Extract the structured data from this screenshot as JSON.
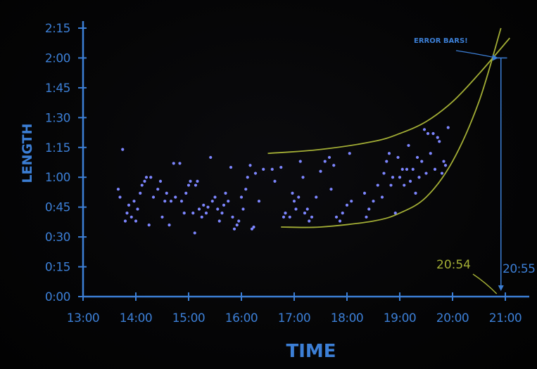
{
  "chart_data": {
    "type": "scatter",
    "title": "",
    "xlabel": "TIME",
    "ylabel": "LENGTH",
    "x_ticks": [
      "13:00",
      "14:00",
      "15:00",
      "16:00",
      "17:00",
      "18:00",
      "19:00",
      "20:00",
      "21:00"
    ],
    "y_ticks": [
      "0:00",
      "0:15",
      "0:30",
      "0:45",
      "1:00",
      "1:15",
      "1:30",
      "1:45",
      "2:00",
      "2:15"
    ],
    "xlim": [
      "13:00",
      "21:20"
    ],
    "ylim": [
      "0:00",
      "2:15"
    ],
    "grid": false,
    "legend": "none",
    "colors": {
      "axis": "#3c7fd6",
      "points": "#7d86ff",
      "fit": "#a3ae35",
      "background": "#050505"
    },
    "points": [
      {
        "x": "13:40",
        "y": "0:54"
      },
      {
        "x": "13:42",
        "y": "0:50"
      },
      {
        "x": "13:45",
        "y": "1:14"
      },
      {
        "x": "13:48",
        "y": "0:38"
      },
      {
        "x": "13:50",
        "y": "0:42"
      },
      {
        "x": "13:52",
        "y": "0:46"
      },
      {
        "x": "13:55",
        "y": "0:40"
      },
      {
        "x": "13:58",
        "y": "0:48"
      },
      {
        "x": "14:00",
        "y": "0:38"
      },
      {
        "x": "14:02",
        "y": "0:44"
      },
      {
        "x": "14:05",
        "y": "0:52"
      },
      {
        "x": "14:07",
        "y": "0:56"
      },
      {
        "x": "14:10",
        "y": "0:58"
      },
      {
        "x": "14:12",
        "y": "1:00"
      },
      {
        "x": "14:15",
        "y": "0:36"
      },
      {
        "x": "14:17",
        "y": "1:00"
      },
      {
        "x": "14:20",
        "y": "0:50"
      },
      {
        "x": "14:25",
        "y": "0:54"
      },
      {
        "x": "14:28",
        "y": "0:58"
      },
      {
        "x": "14:30",
        "y": "0:40"
      },
      {
        "x": "14:33",
        "y": "0:48"
      },
      {
        "x": "14:35",
        "y": "0:52"
      },
      {
        "x": "14:38",
        "y": "0:36"
      },
      {
        "x": "14:40",
        "y": "0:48"
      },
      {
        "x": "14:43",
        "y": "1:07"
      },
      {
        "x": "14:45",
        "y": "0:50"
      },
      {
        "x": "14:50",
        "y": "1:07"
      },
      {
        "x": "14:52",
        "y": "0:48"
      },
      {
        "x": "14:55",
        "y": "0:42"
      },
      {
        "x": "14:57",
        "y": "0:52"
      },
      {
        "x": "15:00",
        "y": "0:56"
      },
      {
        "x": "15:02",
        "y": "0:58"
      },
      {
        "x": "15:05",
        "y": "0:42"
      },
      {
        "x": "15:07",
        "y": "0:32"
      },
      {
        "x": "15:08",
        "y": "0:56"
      },
      {
        "x": "15:10",
        "y": "0:58"
      },
      {
        "x": "15:12",
        "y": "0:44"
      },
      {
        "x": "15:15",
        "y": "0:40"
      },
      {
        "x": "15:17",
        "y": "0:46"
      },
      {
        "x": "15:20",
        "y": "0:42"
      },
      {
        "x": "15:22",
        "y": "0:45"
      },
      {
        "x": "15:25",
        "y": "1:10"
      },
      {
        "x": "15:27",
        "y": "0:48"
      },
      {
        "x": "15:30",
        "y": "0:50"
      },
      {
        "x": "15:33",
        "y": "0:44"
      },
      {
        "x": "15:35",
        "y": "0:38"
      },
      {
        "x": "15:38",
        "y": "0:42"
      },
      {
        "x": "15:40",
        "y": "0:46"
      },
      {
        "x": "15:42",
        "y": "0:52"
      },
      {
        "x": "15:45",
        "y": "0:48"
      },
      {
        "x": "15:48",
        "y": "1:05"
      },
      {
        "x": "15:50",
        "y": "0:40"
      },
      {
        "x": "15:52",
        "y": "0:34"
      },
      {
        "x": "15:55",
        "y": "0:36"
      },
      {
        "x": "15:57",
        "y": "0:38"
      },
      {
        "x": "16:00",
        "y": "0:50"
      },
      {
        "x": "16:02",
        "y": "0:44"
      },
      {
        "x": "16:05",
        "y": "0:54"
      },
      {
        "x": "16:07",
        "y": "1:00"
      },
      {
        "x": "16:10",
        "y": "1:06"
      },
      {
        "x": "16:12",
        "y": "0:34"
      },
      {
        "x": "16:14",
        "y": "0:35"
      },
      {
        "x": "16:16",
        "y": "1:02"
      },
      {
        "x": "16:20",
        "y": "0:48"
      },
      {
        "x": "16:25",
        "y": "1:04"
      },
      {
        "x": "16:35",
        "y": "1:04"
      },
      {
        "x": "16:38",
        "y": "0:58"
      },
      {
        "x": "16:45",
        "y": "1:05"
      },
      {
        "x": "16:48",
        "y": "0:40"
      },
      {
        "x": "16:50",
        "y": "0:42"
      },
      {
        "x": "16:55",
        "y": "0:40"
      },
      {
        "x": "16:58",
        "y": "0:52"
      },
      {
        "x": "17:00",
        "y": "0:48"
      },
      {
        "x": "17:02",
        "y": "0:44"
      },
      {
        "x": "17:05",
        "y": "0:50"
      },
      {
        "x": "17:07",
        "y": "1:08"
      },
      {
        "x": "17:10",
        "y": "1:00"
      },
      {
        "x": "17:12",
        "y": "0:42"
      },
      {
        "x": "17:15",
        "y": "0:44"
      },
      {
        "x": "17:17",
        "y": "0:38"
      },
      {
        "x": "17:20",
        "y": "0:40"
      },
      {
        "x": "17:25",
        "y": "0:50"
      },
      {
        "x": "17:30",
        "y": "1:03"
      },
      {
        "x": "17:35",
        "y": "1:08"
      },
      {
        "x": "17:40",
        "y": "1:10"
      },
      {
        "x": "17:42",
        "y": "0:54"
      },
      {
        "x": "17:45",
        "y": "1:06"
      },
      {
        "x": "17:48",
        "y": "0:40"
      },
      {
        "x": "17:52",
        "y": "0:38"
      },
      {
        "x": "17:55",
        "y": "0:42"
      },
      {
        "x": "18:00",
        "y": "0:46"
      },
      {
        "x": "18:03",
        "y": "1:12"
      },
      {
        "x": "18:05",
        "y": "0:48"
      },
      {
        "x": "18:20",
        "y": "0:52"
      },
      {
        "x": "18:22",
        "y": "0:40"
      },
      {
        "x": "18:25",
        "y": "0:44"
      },
      {
        "x": "18:30",
        "y": "0:48"
      },
      {
        "x": "18:35",
        "y": "0:56"
      },
      {
        "x": "18:40",
        "y": "0:50"
      },
      {
        "x": "18:42",
        "y": "1:02"
      },
      {
        "x": "18:45",
        "y": "1:08"
      },
      {
        "x": "18:48",
        "y": "1:12"
      },
      {
        "x": "18:50",
        "y": "0:56"
      },
      {
        "x": "18:52",
        "y": "1:00"
      },
      {
        "x": "18:55",
        "y": "0:42"
      },
      {
        "x": "18:58",
        "y": "1:10"
      },
      {
        "x": "19:00",
        "y": "1:00"
      },
      {
        "x": "19:03",
        "y": "1:04"
      },
      {
        "x": "19:05",
        "y": "0:56"
      },
      {
        "x": "19:08",
        "y": "1:04"
      },
      {
        "x": "19:10",
        "y": "1:16"
      },
      {
        "x": "19:12",
        "y": "0:58"
      },
      {
        "x": "19:15",
        "y": "1:04"
      },
      {
        "x": "19:18",
        "y": "0:52"
      },
      {
        "x": "19:20",
        "y": "1:10"
      },
      {
        "x": "19:22",
        "y": "1:00"
      },
      {
        "x": "19:25",
        "y": "1:08"
      },
      {
        "x": "19:28",
        "y": "1:24"
      },
      {
        "x": "19:30",
        "y": "1:02"
      },
      {
        "x": "19:32",
        "y": "1:22"
      },
      {
        "x": "19:35",
        "y": "1:12"
      },
      {
        "x": "19:38",
        "y": "1:22"
      },
      {
        "x": "19:40",
        "y": "1:04"
      },
      {
        "x": "19:43",
        "y": "1:20"
      },
      {
        "x": "19:45",
        "y": "1:18"
      },
      {
        "x": "19:48",
        "y": "1:02"
      },
      {
        "x": "19:50",
        "y": "1:08"
      },
      {
        "x": "19:52",
        "y": "1:06"
      },
      {
        "x": "19:55",
        "y": "1:25"
      }
    ],
    "fit_curves": [
      {
        "points": [
          [
            "16:30",
            "1:12"
          ],
          [
            "17:30",
            "1:14"
          ],
          [
            "18:30",
            "1:18"
          ],
          [
            "19:00",
            "1:22"
          ],
          [
            "19:30",
            "1:28"
          ],
          [
            "20:00",
            "1:38"
          ],
          [
            "20:30",
            "1:52"
          ],
          [
            "21:05",
            "2:10"
          ]
        ]
      },
      {
        "points": [
          [
            "16:45",
            "0:35"
          ],
          [
            "17:30",
            "0:35"
          ],
          [
            "18:30",
            "0:38"
          ],
          [
            "19:00",
            "0:42"
          ],
          [
            "19:30",
            "0:50"
          ],
          [
            "20:00",
            "1:08"
          ],
          [
            "20:30",
            "1:38"
          ],
          [
            "20:55",
            "2:15"
          ]
        ]
      }
    ],
    "annotations": [
      {
        "text": "ERROR BARS!",
        "x": "20:30",
        "y": "2:07",
        "color": "#3c7fd6"
      },
      {
        "text": "20:54",
        "x": "20:15",
        "y": "0:18",
        "color": "#a3ae35"
      },
      {
        "text": "20:55",
        "x": "21:03",
        "y": "0:15",
        "color": "#3c7fd6"
      }
    ],
    "error_bar": {
      "x": "20:55",
      "y": "2:00",
      "x_low": "20:50",
      "x_high": "21:02"
    }
  }
}
